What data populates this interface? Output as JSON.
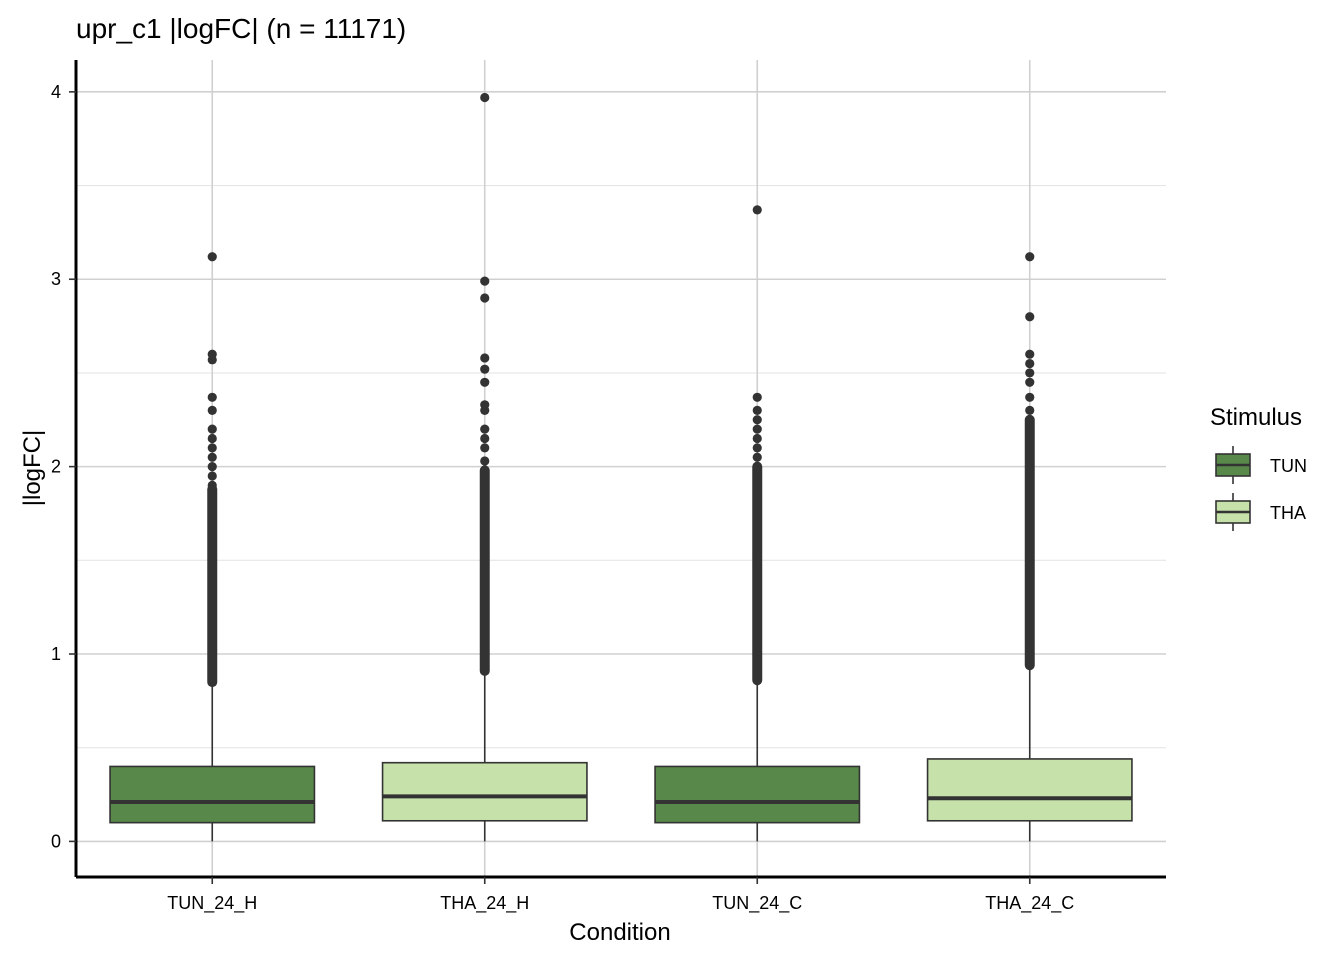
{
  "chart_data": {
    "type": "box",
    "title": "upr_c1 |logFC| (n = 11171)",
    "xlabel": "Condition",
    "ylabel": "|logFC|",
    "ylim": [
      -0.19,
      4.17
    ],
    "yticks": [
      0,
      1,
      2,
      3,
      4
    ],
    "grid": true,
    "legend": {
      "title": "Stimulus",
      "position": "right",
      "entries": [
        "TUN",
        "THA"
      ]
    },
    "colors": {
      "TUN": "#58884a",
      "THA": "#c6e1aa",
      "outline": "#333333",
      "grid": "#d0d0d0"
    },
    "categories": [
      "TUN_24_H",
      "THA_24_H",
      "TUN_24_C",
      "THA_24_C"
    ],
    "boxes": [
      {
        "category": "TUN_24_H",
        "stimulus": "TUN",
        "whisker_low": 0.0,
        "q1": 0.1,
        "median": 0.21,
        "q3": 0.4,
        "whisker_high": 0.84,
        "outliers_range": [
          0.85,
          1.88
        ],
        "outliers": [
          1.9,
          1.95,
          2.0,
          2.05,
          2.1,
          2.15,
          2.2,
          2.3,
          2.37,
          2.57,
          2.6,
          3.12
        ]
      },
      {
        "category": "THA_24_H",
        "stimulus": "THA",
        "whisker_low": 0.0,
        "q1": 0.11,
        "median": 0.24,
        "q3": 0.42,
        "whisker_high": 0.9,
        "outliers_range": [
          0.91,
          1.98
        ],
        "outliers": [
          2.03,
          2.1,
          2.15,
          2.2,
          2.3,
          2.33,
          2.45,
          2.52,
          2.58,
          2.9,
          2.99,
          3.97
        ]
      },
      {
        "category": "TUN_24_C",
        "stimulus": "TUN",
        "whisker_low": 0.0,
        "q1": 0.1,
        "median": 0.21,
        "q3": 0.4,
        "whisker_high": 0.85,
        "outliers_range": [
          0.86,
          2.0
        ],
        "outliers": [
          2.05,
          2.1,
          2.15,
          2.2,
          2.25,
          2.3,
          2.37,
          3.37
        ]
      },
      {
        "category": "THA_24_C",
        "stimulus": "THA",
        "whisker_low": 0.0,
        "q1": 0.11,
        "median": 0.23,
        "q3": 0.44,
        "whisker_high": 0.93,
        "outliers_range": [
          0.94,
          2.25
        ],
        "outliers": [
          2.3,
          2.37,
          2.45,
          2.5,
          2.55,
          2.6,
          2.8,
          3.12
        ]
      }
    ]
  }
}
